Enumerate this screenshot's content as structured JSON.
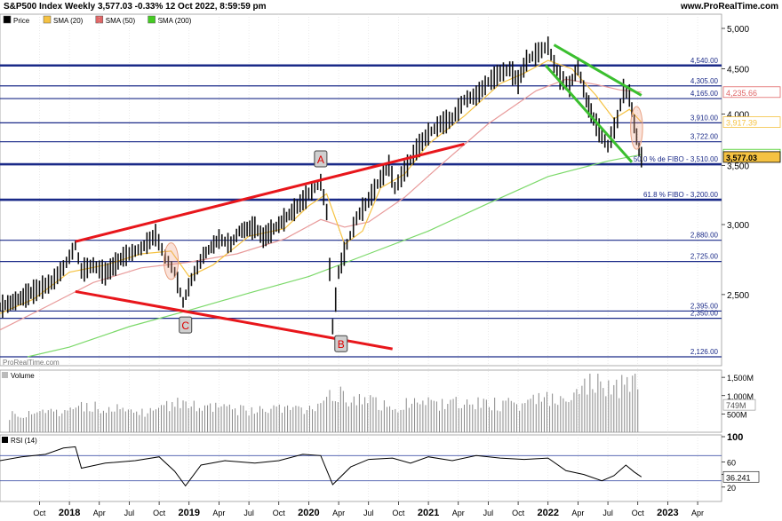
{
  "header": {
    "title": "S&P500 Index Weekly 3,577.03 -0.33% 12 Oct 2022, 8:59:59 pm",
    "site": "www.ProRealTime.com"
  },
  "legend": [
    {
      "label": "Price",
      "color": "#000000"
    },
    {
      "label": "SMA (20)",
      "color": "#f5c242"
    },
    {
      "label": "SMA (50)",
      "color": "#e06666"
    },
    {
      "label": "SMA (200)",
      "color": "#44cc22"
    }
  ],
  "watermark": "ProRealTime.com",
  "chart_data": {
    "type": "line",
    "price_axis": {
      "min": 2126,
      "max": 5000,
      "scale": "log",
      "ticks": [
        {
          "v": 5000,
          "label": "5,000"
        },
        {
          "v": 4500,
          "label": "4,500"
        },
        {
          "v": 4000,
          "label": "4,000"
        },
        {
          "v": 3500,
          "label": "3,500"
        },
        {
          "v": 3000,
          "label": "3,000"
        },
        {
          "v": 2500,
          "label": "2,500"
        }
      ]
    },
    "levels": [
      {
        "v": 4540,
        "label": "4,540.00",
        "heavy": true
      },
      {
        "v": 4305,
        "label": "4,305.00",
        "heavy": false
      },
      {
        "v": 4165,
        "label": "4,165.00",
        "heavy": false
      },
      {
        "v": 3910,
        "label": "3,910.00",
        "heavy": false
      },
      {
        "v": 3722,
        "label": "3,722.00",
        "heavy": false
      },
      {
        "v": 3510,
        "label": "50.0 % de FIBO - 3,510.00",
        "heavy": true
      },
      {
        "v": 3200,
        "label": "61.8 % FIBO - 3,200.00",
        "heavy": true
      },
      {
        "v": 2880,
        "label": "2,880.00",
        "heavy": false
      },
      {
        "v": 2725,
        "label": "2,725.00",
        "heavy": false
      },
      {
        "v": 2395,
        "label": "2,395.00",
        "heavy": false
      },
      {
        "v": 2350,
        "label": "2,350.00",
        "heavy": false
      },
      {
        "v": 2126,
        "label": "2,126.00",
        "heavy": false
      }
    ],
    "right_badges": [
      {
        "v": 4235.66,
        "label": "4,235.66",
        "color": "#e06666"
      },
      {
        "v": 3917.39,
        "label": "3,917.39",
        "color": "#f5c242"
      },
      {
        "v": 3599.26,
        "label": "3,599.26",
        "color": "#44cc22"
      },
      {
        "v": 3577.03,
        "label": "3,577.03",
        "color": "#000000",
        "bg": "#f5c242"
      }
    ],
    "x_ticks": [
      {
        "t": 2017.75,
        "label": "Oct",
        "bold": false
      },
      {
        "t": 2018.0,
        "label": "2018",
        "bold": true
      },
      {
        "t": 2018.25,
        "label": "Apr",
        "bold": false
      },
      {
        "t": 2018.5,
        "label": "Jul",
        "bold": false
      },
      {
        "t": 2018.75,
        "label": "Oct",
        "bold": false
      },
      {
        "t": 2019.0,
        "label": "2019",
        "bold": true
      },
      {
        "t": 2019.25,
        "label": "Apr",
        "bold": false
      },
      {
        "t": 2019.5,
        "label": "Jul",
        "bold": false
      },
      {
        "t": 2019.75,
        "label": "Oct",
        "bold": false
      },
      {
        "t": 2020.0,
        "label": "2020",
        "bold": true
      },
      {
        "t": 2020.25,
        "label": "Apr",
        "bold": false
      },
      {
        "t": 2020.5,
        "label": "Jul",
        "bold": false
      },
      {
        "t": 2020.75,
        "label": "Oct",
        "bold": false
      },
      {
        "t": 2021.0,
        "label": "2021",
        "bold": true
      },
      {
        "t": 2021.25,
        "label": "Apr",
        "bold": false
      },
      {
        "t": 2021.5,
        "label": "Jul",
        "bold": false
      },
      {
        "t": 2021.75,
        "label": "Oct",
        "bold": false
      },
      {
        "t": 2022.0,
        "label": "2022",
        "bold": true
      },
      {
        "t": 2022.25,
        "label": "Apr",
        "bold": false
      },
      {
        "t": 2022.5,
        "label": "Jul",
        "bold": false
      },
      {
        "t": 2022.75,
        "label": "Oct",
        "bold": false
      },
      {
        "t": 2023.0,
        "label": "2023",
        "bold": true
      },
      {
        "t": 2023.25,
        "label": "Apr",
        "bold": false
      }
    ],
    "price": [
      [
        2017.42,
        2420
      ],
      [
        2017.55,
        2460
      ],
      [
        2017.7,
        2520
      ],
      [
        2017.85,
        2580
      ],
      [
        2017.95,
        2680
      ],
      [
        2018.05,
        2840
      ],
      [
        2018.1,
        2660
      ],
      [
        2018.2,
        2700
      ],
      [
        2018.3,
        2640
      ],
      [
        2018.45,
        2760
      ],
      [
        2018.6,
        2820
      ],
      [
        2018.72,
        2920
      ],
      [
        2018.8,
        2760
      ],
      [
        2018.88,
        2650
      ],
      [
        2018.95,
        2450
      ],
      [
        2019.02,
        2600
      ],
      [
        2019.12,
        2770
      ],
      [
        2019.25,
        2890
      ],
      [
        2019.35,
        2850
      ],
      [
        2019.42,
        2950
      ],
      [
        2019.55,
        2980
      ],
      [
        2019.62,
        2900
      ],
      [
        2019.75,
        3000
      ],
      [
        2019.88,
        3120
      ],
      [
        2020.0,
        3250
      ],
      [
        2020.1,
        3350
      ],
      [
        2020.15,
        3100
      ],
      [
        2020.2,
        2300
      ],
      [
        2020.25,
        2650
      ],
      [
        2020.32,
        2850
      ],
      [
        2020.4,
        3050
      ],
      [
        2020.5,
        3200
      ],
      [
        2020.6,
        3380
      ],
      [
        2020.67,
        3500
      ],
      [
        2020.72,
        3300
      ],
      [
        2020.8,
        3450
      ],
      [
        2020.9,
        3650
      ],
      [
        2021.0,
        3800
      ],
      [
        2021.1,
        3900
      ],
      [
        2021.2,
        3950
      ],
      [
        2021.3,
        4150
      ],
      [
        2021.4,
        4200
      ],
      [
        2021.5,
        4350
      ],
      [
        2021.6,
        4450
      ],
      [
        2021.68,
        4500
      ],
      [
        2021.75,
        4350
      ],
      [
        2021.82,
        4600
      ],
      [
        2021.92,
        4700
      ],
      [
        2022.0,
        4780
      ],
      [
        2022.05,
        4560
      ],
      [
        2022.1,
        4400
      ],
      [
        2022.18,
        4300
      ],
      [
        2022.25,
        4530
      ],
      [
        2022.32,
        4150
      ],
      [
        2022.38,
        3950
      ],
      [
        2022.45,
        3780
      ],
      [
        2022.5,
        3680
      ],
      [
        2022.58,
        3950
      ],
      [
        2022.63,
        4250
      ],
      [
        2022.68,
        4200
      ],
      [
        2022.72,
        3900
      ],
      [
        2022.76,
        3650
      ],
      [
        2022.78,
        3577.03
      ]
    ],
    "sma20": [
      [
        2017.42,
        2380
      ],
      [
        2017.7,
        2470
      ],
      [
        2018.0,
        2650
      ],
      [
        2018.3,
        2700
      ],
      [
        2018.6,
        2780
      ],
      [
        2018.85,
        2800
      ],
      [
        2019.0,
        2620
      ],
      [
        2019.2,
        2700
      ],
      [
        2019.5,
        2910
      ],
      [
        2019.8,
        2970
      ],
      [
        2020.0,
        3150
      ],
      [
        2020.15,
        3250
      ],
      [
        2020.3,
        2850
      ],
      [
        2020.45,
        2950
      ],
      [
        2020.6,
        3300
      ],
      [
        2020.8,
        3420
      ],
      [
        2021.0,
        3700
      ],
      [
        2021.3,
        3980
      ],
      [
        2021.6,
        4330
      ],
      [
        2021.8,
        4450
      ],
      [
        2022.0,
        4600
      ],
      [
        2022.2,
        4500
      ],
      [
        2022.4,
        4200
      ],
      [
        2022.55,
        3950
      ],
      [
        2022.68,
        4050
      ],
      [
        2022.78,
        3917.39
      ]
    ],
    "sma50": [
      [
        2017.42,
        2280
      ],
      [
        2017.8,
        2420
      ],
      [
        2018.2,
        2580
      ],
      [
        2018.6,
        2680
      ],
      [
        2019.0,
        2720
      ],
      [
        2019.4,
        2780
      ],
      [
        2019.8,
        2890
      ],
      [
        2020.1,
        3040
      ],
      [
        2020.3,
        2980
      ],
      [
        2020.5,
        3020
      ],
      [
        2020.8,
        3220
      ],
      [
        2021.1,
        3500
      ],
      [
        2021.5,
        3900
      ],
      [
        2021.9,
        4250
      ],
      [
        2022.15,
        4380
      ],
      [
        2022.4,
        4320
      ],
      [
        2022.6,
        4260
      ],
      [
        2022.78,
        4235.66
      ]
    ],
    "sma200": [
      [
        2017.65,
        2126
      ],
      [
        2018.0,
        2180
      ],
      [
        2018.5,
        2300
      ],
      [
        2019.0,
        2400
      ],
      [
        2019.5,
        2510
      ],
      [
        2020.0,
        2620
      ],
      [
        2020.5,
        2780
      ],
      [
        2021.0,
        2950
      ],
      [
        2021.5,
        3170
      ],
      [
        2022.0,
        3400
      ],
      [
        2022.5,
        3540
      ],
      [
        2022.78,
        3599.26
      ]
    ],
    "trendlines": [
      {
        "color": "#e8161b",
        "p": [
          [
            2018.05,
            2870
          ],
          [
            2021.3,
            3700
          ]
        ]
      },
      {
        "color": "#e8161b",
        "p": [
          [
            2018.05,
            2520
          ],
          [
            2020.7,
            2170
          ]
        ]
      },
      {
        "color": "#3bbf2f",
        "p": [
          [
            2022.05,
            4790
          ],
          [
            2022.78,
            4200
          ]
        ]
      },
      {
        "color": "#3bbf2f",
        "p": [
          [
            2021.98,
            4540
          ],
          [
            2022.7,
            3530
          ]
        ]
      }
    ],
    "ellipses": [
      {
        "t": 2018.85,
        "v": 2730,
        "rt": 0.06,
        "rv1": 2860,
        "rv2": 2600
      },
      {
        "t": 2022.74,
        "v": 3860,
        "rt": 0.05,
        "rv1": 4080,
        "rv2": 3650
      }
    ],
    "annotations": [
      {
        "label": "A",
        "t": 2020.1,
        "v": 3560
      },
      {
        "label": "B",
        "t": 2020.27,
        "v": 2200
      },
      {
        "label": "C",
        "t": 2018.97,
        "v": 2310
      }
    ],
    "volume": {
      "label": "Volume",
      "ticks": [
        {
          "v": 1500,
          "label": "1,500M"
        },
        {
          "v": 1000,
          "label": "1,000M"
        },
        {
          "v": 500,
          "label": "500M"
        }
      ],
      "badge": "749M",
      "max": 1600,
      "bars": [
        [
          2017.5,
          480
        ],
        [
          2017.8,
          520
        ],
        [
          2018.1,
          760
        ],
        [
          2018.4,
          640
        ],
        [
          2018.7,
          580
        ],
        [
          2018.95,
          900
        ],
        [
          2019.2,
          700
        ],
        [
          2019.5,
          640
        ],
        [
          2019.8,
          660
        ],
        [
          2020.1,
          720
        ],
        [
          2020.2,
          1120
        ],
        [
          2020.4,
          900
        ],
        [
          2020.7,
          760
        ],
        [
          2021.0,
          820
        ],
        [
          2021.3,
          840
        ],
        [
          2021.6,
          780
        ],
        [
          2021.9,
          880
        ],
        [
          2022.15,
          1050
        ],
        [
          2022.35,
          1500
        ],
        [
          2022.55,
          1280
        ],
        [
          2022.75,
          1480
        ],
        [
          2022.78,
          749
        ]
      ]
    },
    "rsi": {
      "label": "RSI (14)",
      "ticks": [
        {
          "v": 100,
          "label": "100"
        },
        {
          "v": 60,
          "label": "60"
        },
        {
          "v": 40,
          "label": "40"
        },
        {
          "v": 20,
          "label": "20"
        }
      ],
      "levels": [
        70,
        30
      ],
      "badge": "36.241",
      "points": [
        [
          2017.42,
          62
        ],
        [
          2017.6,
          68
        ],
        [
          2017.8,
          72
        ],
        [
          2017.95,
          82
        ],
        [
          2018.05,
          84
        ],
        [
          2018.1,
          50
        ],
        [
          2018.3,
          58
        ],
        [
          2018.55,
          62
        ],
        [
          2018.75,
          68
        ],
        [
          2018.88,
          45
        ],
        [
          2018.97,
          22
        ],
        [
          2019.1,
          55
        ],
        [
          2019.3,
          62
        ],
        [
          2019.55,
          58
        ],
        [
          2019.75,
          62
        ],
        [
          2019.95,
          72
        ],
        [
          2020.1,
          70
        ],
        [
          2020.2,
          24
        ],
        [
          2020.35,
          52
        ],
        [
          2020.5,
          64
        ],
        [
          2020.7,
          66
        ],
        [
          2020.85,
          58
        ],
        [
          2021.0,
          68
        ],
        [
          2021.2,
          62
        ],
        [
          2021.4,
          70
        ],
        [
          2021.6,
          66
        ],
        [
          2021.8,
          64
        ],
        [
          2022.0,
          66
        ],
        [
          2022.15,
          46
        ],
        [
          2022.3,
          40
        ],
        [
          2022.45,
          30
        ],
        [
          2022.55,
          38
        ],
        [
          2022.65,
          55
        ],
        [
          2022.72,
          44
        ],
        [
          2022.78,
          36.241
        ]
      ]
    }
  }
}
